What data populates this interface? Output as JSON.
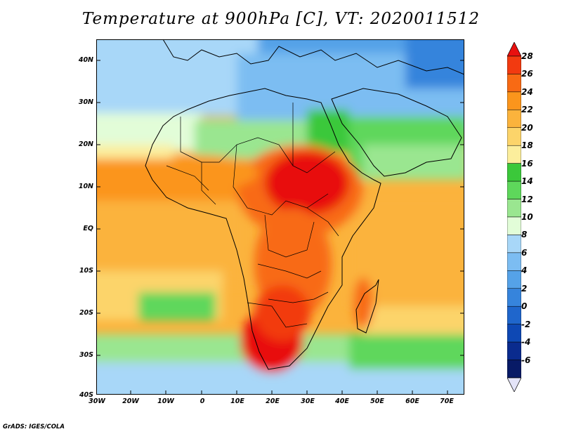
{
  "title": "Temperature at 900hPa [C], VT: 2020011512",
  "credit": "GrADS: IGES/COLA",
  "map": {
    "lat_labels": [
      "40N",
      "30N",
      "20N",
      "10N",
      "EQ",
      "10S",
      "20S",
      "30S",
      "40S"
    ],
    "lon_labels": [
      "30W",
      "20W",
      "10W",
      "0",
      "10E",
      "20E",
      "30E",
      "40E",
      "50E",
      "60E",
      "70E"
    ],
    "region": "Africa and surrounding oceans",
    "variable": "Temperature at 900hPa",
    "unit": "C"
  },
  "colorbar": {
    "levels": [
      "28",
      "26",
      "24",
      "22",
      "20",
      "18",
      "16",
      "14",
      "12",
      "10",
      "8",
      "6",
      "4",
      "2",
      "0",
      "-2",
      "-4",
      "-6"
    ],
    "colors": [
      "#e8100f",
      "#f23a10",
      "#f86a14",
      "#fb951c",
      "#fbb33c",
      "#fcd46a",
      "#fcee9c",
      "#3bc83a",
      "#5ed75b",
      "#9ae690",
      "#e2fdd8",
      "#a8d7f8",
      "#7cbdf2",
      "#55a2e8",
      "#3684dc",
      "#1f66cc",
      "#0e48b4",
      "#0a2b8e",
      "#081a66",
      "#e4e4f8"
    ]
  }
}
